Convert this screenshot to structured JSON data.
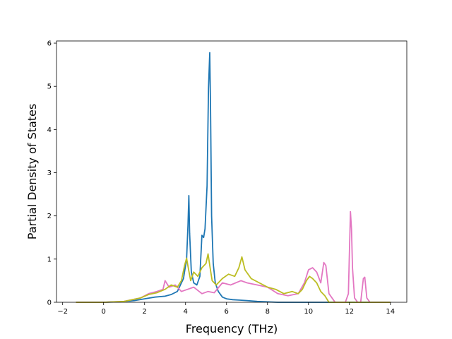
{
  "chart_data": {
    "type": "line",
    "xlabel": "Frequency (THz)",
    "ylabel": "Partial Density of States",
    "xlim": [
      -2.3,
      14.8
    ],
    "ylim": [
      0,
      6.05
    ],
    "xticks": [
      -2,
      0,
      2,
      4,
      6,
      8,
      10,
      12,
      14
    ],
    "yticks": [
      0,
      1,
      2,
      3,
      4,
      5,
      6
    ],
    "grid": false,
    "legend": "none",
    "series": [
      {
        "color": "#1f77b4",
        "x": [
          -1.35,
          0.0,
          0.8,
          1.5,
          2.0,
          2.5,
          3.0,
          3.3,
          3.6,
          3.9,
          4.05,
          4.12,
          4.16,
          4.2,
          4.28,
          4.4,
          4.55,
          4.7,
          4.8,
          4.88,
          4.95,
          5.05,
          5.12,
          5.18,
          5.22,
          5.27,
          5.35,
          5.45,
          5.6,
          5.8,
          6.0,
          6.3,
          6.6,
          7.0,
          7.5,
          8.0,
          8.5,
          9.0,
          10.0,
          11.0,
          12.0,
          13.0,
          14.0
        ],
        "y": [
          0.0,
          0.0,
          0.01,
          0.04,
          0.08,
          0.12,
          0.14,
          0.18,
          0.25,
          0.55,
          1.0,
          1.8,
          2.47,
          1.6,
          0.7,
          0.45,
          0.4,
          0.6,
          1.55,
          1.5,
          1.7,
          2.7,
          4.95,
          5.78,
          4.5,
          2.0,
          0.9,
          0.45,
          0.25,
          0.12,
          0.08,
          0.06,
          0.05,
          0.04,
          0.02,
          0.01,
          0.0,
          0.0,
          0.0,
          0.0,
          0.0,
          0.0,
          0.0
        ]
      },
      {
        "color": "#e377c2",
        "x": [
          -1.35,
          0.0,
          1.0,
          1.8,
          2.2,
          2.6,
          2.9,
          3.0,
          3.2,
          3.5,
          3.8,
          4.1,
          4.4,
          4.8,
          5.1,
          5.4,
          5.8,
          6.2,
          6.7,
          7.0,
          7.5,
          8.0,
          8.5,
          9.0,
          9.5,
          9.8,
          10.0,
          10.2,
          10.4,
          10.6,
          10.75,
          10.85,
          11.0,
          11.3,
          11.8,
          11.95,
          12.05,
          12.1,
          12.15,
          12.25,
          12.4,
          12.55,
          12.68,
          12.75,
          12.85,
          13.0,
          13.5,
          14.0
        ],
        "y": [
          0.0,
          0.0,
          0.02,
          0.1,
          0.2,
          0.25,
          0.3,
          0.5,
          0.35,
          0.4,
          0.25,
          0.3,
          0.35,
          0.2,
          0.25,
          0.22,
          0.45,
          0.4,
          0.5,
          0.45,
          0.4,
          0.35,
          0.2,
          0.15,
          0.2,
          0.45,
          0.75,
          0.8,
          0.7,
          0.45,
          0.92,
          0.85,
          0.2,
          0.0,
          0.0,
          0.2,
          2.1,
          1.7,
          0.8,
          0.1,
          0.0,
          0.0,
          0.55,
          0.58,
          0.1,
          0.0,
          0.0,
          0.0
        ]
      },
      {
        "color": "#bcbd22",
        "x": [
          -1.35,
          0.0,
          1.0,
          1.8,
          2.2,
          2.6,
          3.0,
          3.3,
          3.6,
          3.8,
          3.95,
          4.05,
          4.15,
          4.25,
          4.4,
          4.6,
          4.8,
          5.0,
          5.1,
          5.2,
          5.3,
          5.5,
          5.8,
          6.1,
          6.4,
          6.6,
          6.75,
          6.9,
          7.2,
          7.6,
          8.0,
          8.4,
          8.8,
          9.2,
          9.5,
          9.7,
          9.9,
          10.05,
          10.2,
          10.4,
          10.6,
          10.8,
          11.0,
          11.5,
          12.0,
          13.0,
          14.0
        ],
        "y": [
          0.0,
          0.0,
          0.02,
          0.1,
          0.18,
          0.22,
          0.3,
          0.4,
          0.35,
          0.5,
          0.85,
          1.02,
          0.75,
          0.5,
          0.7,
          0.6,
          0.8,
          0.9,
          1.12,
          0.8,
          0.5,
          0.4,
          0.55,
          0.65,
          0.6,
          0.8,
          1.05,
          0.75,
          0.55,
          0.45,
          0.35,
          0.3,
          0.2,
          0.25,
          0.2,
          0.3,
          0.5,
          0.6,
          0.55,
          0.45,
          0.25,
          0.15,
          0.0,
          0.0,
          0.0,
          0.0,
          0.0
        ]
      }
    ]
  }
}
